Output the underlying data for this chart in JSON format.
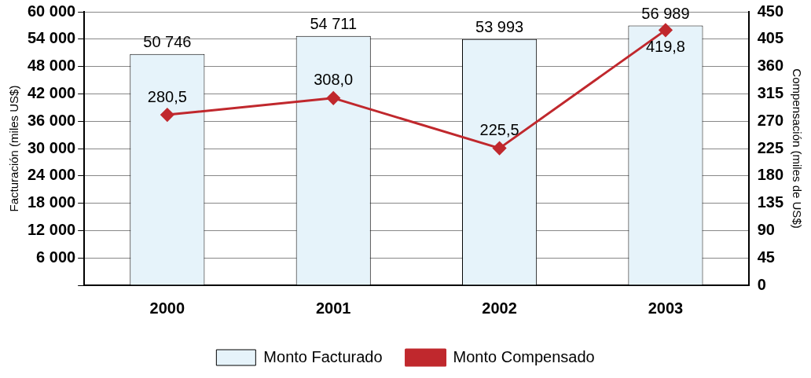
{
  "chart_data": {
    "type": "bar",
    "categories": [
      "2000",
      "2001",
      "2002",
      "2003"
    ],
    "ylabel": "Facturación (miles US$)",
    "y2label": "Compensación (miles de US$)",
    "series": [
      {
        "name": "Monto Facturado",
        "color": "#e6f3fa",
        "values": [
          50746,
          54711,
          53993,
          56989
        ],
        "value_labels": [
          "50 746",
          "54 711",
          "53 993",
          "56 989"
        ]
      },
      {
        "name": "Monto Compensado",
        "type": "line",
        "axis": "y2",
        "color": "#c0282d",
        "values": [
          280.5,
          308.0,
          225.5,
          419.8
        ],
        "value_labels": [
          "280,5",
          "308,0",
          "225,5",
          "419,8"
        ]
      }
    ],
    "ylim": [
      0,
      60000
    ],
    "yticks": [
      {
        "value": 0,
        "label": null
      },
      {
        "value": 6000,
        "label": "6 000"
      },
      {
        "value": 12000,
        "label": "12 000"
      },
      {
        "value": 18000,
        "label": "18 000"
      },
      {
        "value": 24000,
        "label": "24 000"
      },
      {
        "value": 30000,
        "label": "30 000"
      },
      {
        "value": 36000,
        "label": "36 000"
      },
      {
        "value": 42000,
        "label": "42 000"
      },
      {
        "value": 48000,
        "label": "48 000"
      },
      {
        "value": 54000,
        "label": "54 000"
      },
      {
        "value": 60000,
        "label": "60 000"
      }
    ],
    "y2lim": [
      0,
      450
    ],
    "y2ticks": [
      0,
      45,
      90,
      135,
      180,
      225,
      270,
      315,
      360,
      405,
      450
    ],
    "grid": "y",
    "legend": "bottom",
    "marker": "diamond",
    "line_style": "solid"
  }
}
